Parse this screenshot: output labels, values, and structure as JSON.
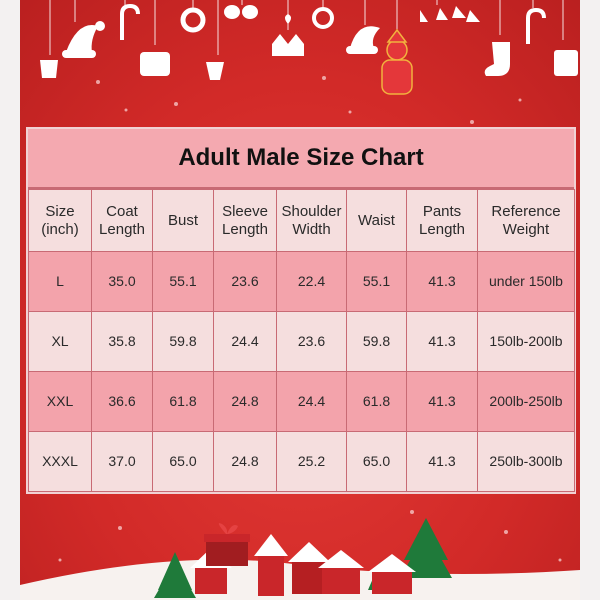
{
  "title": "Adult Male Size Chart",
  "colors": {
    "background": "#d62a2a",
    "title_band": "#f4a9b0",
    "row_light": "#f5dede",
    "row_dark": "#f3a3ab",
    "grid_line": "#c86a74",
    "ornament": "#ffffff"
  },
  "headers": [
    "Size\n(inch)",
    "Coat\nLength",
    "Bust",
    "Sleeve\nLength",
    "Shoulder\nWidth",
    "Waist",
    "Pants\nLength",
    "Reference\nWeight"
  ],
  "rows": [
    [
      "L",
      "35.0",
      "55.1",
      "23.6",
      "22.4",
      "55.1",
      "41.3",
      "under 150lb"
    ],
    [
      "XL",
      "35.8",
      "59.8",
      "24.4",
      "23.6",
      "59.8",
      "41.3",
      "150lb-200lb"
    ],
    [
      "XXL",
      "36.6",
      "61.8",
      "24.8",
      "24.4",
      "61.8",
      "41.3",
      "200lb-250lb"
    ],
    [
      "XXXL",
      "37.0",
      "65.0",
      "24.8",
      "25.2",
      "65.0",
      "41.3",
      "250lb-300lb"
    ]
  ],
  "decorations": {
    "hanging_ornaments": [
      "santa-hat-icon",
      "candy-cane-icon",
      "wreath-icon",
      "mittens-icon",
      "bell-icon",
      "stocking-icon",
      "gift-icon",
      "santa-icon"
    ],
    "scene": [
      "snow-hill",
      "christmas-tree-icon",
      "house-icon",
      "gift-box-icon"
    ]
  }
}
